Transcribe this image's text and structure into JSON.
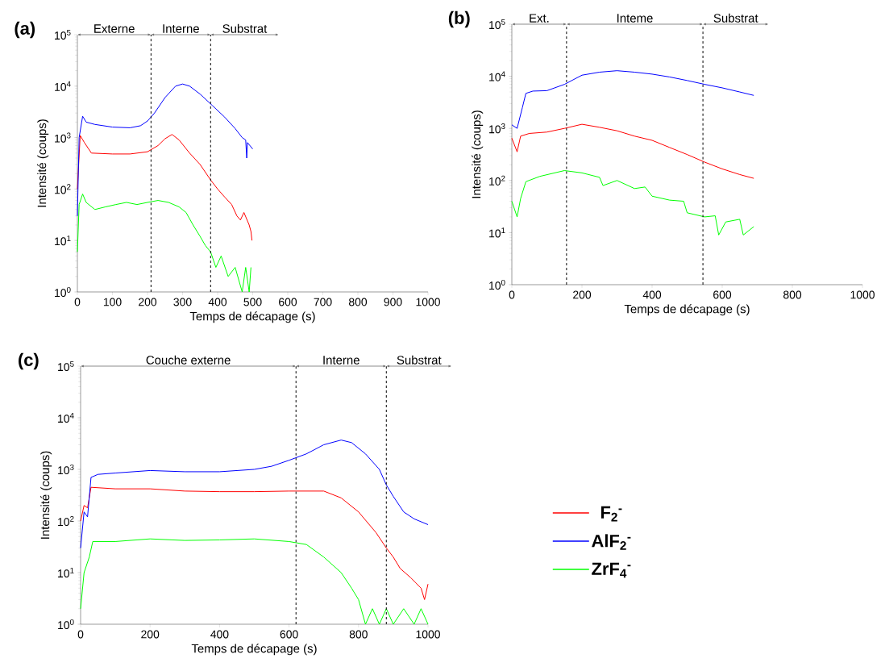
{
  "chart_data": [
    {
      "type": "line",
      "title": "(a)",
      "xlabel": "Temps de décapage (s)",
      "ylabel": "Intensité (coups)",
      "log": "y",
      "xlim": [
        0,
        1000
      ],
      "xticks": [
        0,
        100,
        200,
        300,
        400,
        500,
        600,
        700,
        800,
        900,
        1000
      ],
      "ylim": [
        1,
        100000
      ],
      "yticks": [
        {
          "value": 1,
          "label": "10$^{0}$"
        },
        {
          "value": 10,
          "label": "10$^{1}$"
        },
        {
          "value": 100,
          "label": "10$^{2}$"
        },
        {
          "value": 1000,
          "label": "10$^{3}$"
        },
        {
          "value": 10000,
          "label": "10$^{4}$"
        },
        {
          "value": 100000,
          "label": "10$^{5}$"
        }
      ],
      "ref_lines": [
        {
          "axis": "x",
          "value": 210,
          "color": "#000000",
          "line_style": "dashed"
        },
        {
          "axis": "x",
          "value": 380,
          "color": "#000000",
          "line_style": "dashed"
        }
      ],
      "annotations": [
        "Externe",
        "Interne",
        "Substrat"
      ],
      "series": [
        {
          "color": "#ff0000",
          "x": [
            0,
            8,
            20,
            40,
            100,
            150,
            200,
            230,
            250,
            270,
            290,
            320,
            350,
            380,
            400,
            420,
            440,
            455,
            465,
            475,
            490,
            495,
            498
          ],
          "values": [
            100,
            1100,
            800,
            500,
            480,
            480,
            530,
            700,
            950,
            1150,
            900,
            500,
            300,
            150,
            100,
            70,
            50,
            30,
            25,
            35,
            20,
            15,
            10
          ]
        },
        {
          "color": "#0000ff",
          "x": [
            0,
            5,
            15,
            25,
            50,
            100,
            150,
            180,
            200,
            220,
            250,
            280,
            300,
            320,
            350,
            385,
            420,
            450,
            470,
            480,
            483,
            485,
            500
          ],
          "values": [
            30,
            1000,
            2600,
            2000,
            1800,
            1600,
            1550,
            1700,
            2100,
            3000,
            6000,
            10000,
            11000,
            10000,
            7000,
            4200,
            2500,
            1500,
            1000,
            900,
            400,
            800,
            600
          ]
        },
        {
          "color": "#00ff00",
          "x": [
            0,
            5,
            15,
            25,
            50,
            80,
            110,
            140,
            170,
            200,
            230,
            260,
            290,
            310,
            330,
            350,
            365,
            380,
            395,
            410,
            430,
            450,
            470,
            480,
            490,
            495
          ],
          "values": [
            6,
            50,
            80,
            55,
            40,
            45,
            50,
            55,
            50,
            55,
            60,
            55,
            45,
            35,
            20,
            12,
            8,
            6,
            3,
            5,
            2,
            3,
            1,
            3,
            1,
            3
          ]
        }
      ]
    },
    {
      "type": "line",
      "title": "(b)",
      "xlabel": "Temps de décapage (s)",
      "ylabel": "Intensité (coups)",
      "log": "y",
      "xlim": [
        0,
        1000
      ],
      "xticks": [
        0,
        200,
        400,
        600,
        800,
        1000
      ],
      "ylim": [
        1,
        100000
      ],
      "yticks": [
        {
          "value": 1,
          "label": "10$^{0}$"
        },
        {
          "value": 10,
          "label": "10$^{1}$"
        },
        {
          "value": 100,
          "label": "10$^{2}$"
        },
        {
          "value": 1000,
          "label": "10$^{3}$"
        },
        {
          "value": 10000,
          "label": "10$^{4}$"
        },
        {
          "value": 100000,
          "label": "10$^{5}$"
        }
      ],
      "ref_lines": [
        {
          "axis": "x",
          "value": 156,
          "color": "#000000",
          "line_style": "dashed"
        },
        {
          "axis": "x",
          "value": 545,
          "color": "#000000",
          "line_style": "dashed"
        }
      ],
      "annotations": [
        "Ext.",
        "Inteme",
        "Substrat"
      ],
      "series": [
        {
          "color": "#ff0000",
          "x": [
            0,
            15,
            25,
            50,
            100,
            150,
            200,
            250,
            300,
            350,
            400,
            450,
            500,
            550,
            600,
            650,
            690
          ],
          "values": [
            650,
            355,
            710,
            800,
            850,
            1000,
            1200,
            1050,
            900,
            710,
            590,
            430,
            315,
            225,
            167,
            130,
            110
          ]
        },
        {
          "color": "#0000ff",
          "x": [
            0,
            15,
            30,
            40,
            60,
            100,
            150,
            200,
            250,
            300,
            350,
            400,
            450,
            500,
            550,
            600,
            650,
            690
          ],
          "values": [
            1170,
            1000,
            2500,
            4700,
            5200,
            5300,
            7000,
            10500,
            12000,
            12800,
            12000,
            11000,
            9700,
            8300,
            7000,
            6000,
            5000,
            4300
          ]
        },
        {
          "color": "#00ff00",
          "x": [
            0,
            15,
            25,
            40,
            80,
            150,
            200,
            250,
            260,
            300,
            350,
            380,
            400,
            450,
            490,
            500,
            550,
            580,
            590,
            610,
            650,
            660,
            690
          ],
          "values": [
            40,
            20,
            45,
            95,
            120,
            155,
            140,
            115,
            80,
            100,
            70,
            75,
            50,
            42,
            40,
            24,
            20,
            21,
            9,
            16,
            18,
            9,
            13
          ]
        }
      ]
    },
    {
      "type": "line",
      "title": "(c)",
      "xlabel": "Temps de décapage (s)",
      "ylabel": "Intensité (coups)",
      "log": "y",
      "legend": "right",
      "xlim": [
        0,
        1000
      ],
      "xticks": [
        0,
        200,
        400,
        600,
        800,
        1000
      ],
      "ylim": [
        1,
        100000
      ],
      "yticks": [
        {
          "value": 1,
          "label": "10$^{0}$"
        },
        {
          "value": 10,
          "label": "10$^{1}$"
        },
        {
          "value": 100,
          "label": "10$^{2}$"
        },
        {
          "value": 1000,
          "label": "10$^{3}$"
        },
        {
          "value": 10000,
          "label": "10$^{4}$"
        },
        {
          "value": 100000,
          "label": "10$^{5}$"
        }
      ],
      "ref_lines": [
        {
          "axis": "x",
          "value": 620,
          "color": "#000000",
          "line_style": "dashed"
        },
        {
          "axis": "x",
          "value": 880,
          "color": "#000000",
          "line_style": "dashed"
        }
      ],
      "annotations": [
        "Couche externe",
        "Interne",
        "Substrat"
      ],
      "series": [
        {
          "name": "F$_{2}$$^{-}$",
          "color": "#ff0000",
          "x": [
            0,
            10,
            20,
            30,
            100,
            200,
            300,
            400,
            500,
            600,
            700,
            750,
            800,
            850,
            880,
            900,
            920,
            950,
            980,
            990,
            1000
          ],
          "values": [
            100,
            200,
            180,
            450,
            420,
            420,
            380,
            370,
            370,
            380,
            380,
            280,
            150,
            60,
            30,
            20,
            12,
            8,
            5,
            3,
            6
          ]
        },
        {
          "name": "AlF$_{2}$$^{-}$",
          "color": "#0000ff",
          "x": [
            0,
            10,
            20,
            30,
            50,
            100,
            200,
            300,
            400,
            500,
            550,
            600,
            650,
            700,
            750,
            780,
            820,
            860,
            880,
            900,
            930,
            960,
            1000
          ],
          "values": [
            30,
            150,
            120,
            700,
            800,
            850,
            950,
            900,
            900,
            1000,
            1150,
            1500,
            2000,
            3000,
            3700,
            3300,
            2000,
            1000,
            500,
            300,
            150,
            110,
            85
          ]
        },
        {
          "name": "ZrF$_{4}$$^{-}$",
          "color": "#00ff00",
          "x": [
            0,
            10,
            25,
            35,
            100,
            200,
            300,
            400,
            500,
            600,
            650,
            700,
            750,
            780,
            800,
            820,
            840,
            860,
            880,
            900,
            930,
            960,
            980,
            1000
          ],
          "values": [
            2,
            10,
            20,
            40,
            40,
            45,
            42,
            43,
            45,
            40,
            35,
            20,
            10,
            5,
            3,
            1,
            2,
            1,
            2,
            1,
            2,
            1,
            2,
            1
          ]
        }
      ]
    }
  ]
}
